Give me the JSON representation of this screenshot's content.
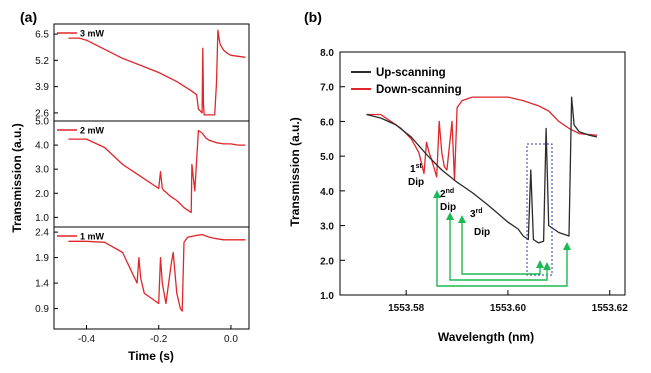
{
  "colors": {
    "red": "#e0262b",
    "black": "#2b2b2b",
    "green": "#1db954",
    "blue": "#2f3aa8"
  },
  "chart_data": [
    {
      "panel_label": "(a)",
      "type": "line",
      "xlabel": "Time (s)",
      "ylabel": "Transmission (a.u.)",
      "x_ticks": [
        "-0.4",
        "-0.2",
        "0.0"
      ],
      "xlim": [
        -0.49,
        0.05
      ],
      "subplots": [
        {
          "label": "3 mW",
          "ylim": [
            2.2,
            7.0
          ],
          "y_ticks": [
            "6.5",
            "5.2",
            "3.9",
            "2.6"
          ],
          "x": [
            -0.45,
            -0.42,
            -0.4,
            -0.35,
            -0.3,
            -0.25,
            -0.2,
            -0.15,
            -0.11,
            -0.095,
            -0.09,
            -0.08,
            -0.08,
            -0.078,
            -0.076,
            -0.074,
            -0.07,
            -0.06,
            -0.045,
            -0.04,
            -0.036,
            -0.034,
            -0.03,
            -0.02,
            -0.01,
            0.0,
            0.02,
            0.04
          ],
          "values": [
            6.3,
            6.3,
            6.2,
            5.75,
            5.3,
            4.95,
            4.6,
            4.15,
            3.7,
            3.5,
            2.8,
            2.6,
            2.6,
            5.8,
            3.0,
            2.5,
            2.5,
            2.5,
            2.5,
            4.1,
            6.7,
            6.4,
            6.0,
            5.7,
            5.55,
            5.45,
            5.4,
            5.35
          ]
        },
        {
          "label": "2 mW",
          "ylim": [
            0.6,
            5.0
          ],
          "y_ticks": [
            "5.0",
            "4.0",
            "3.0",
            "2.0",
            "1.0"
          ],
          "x": [
            -0.45,
            -0.4,
            -0.35,
            -0.3,
            -0.25,
            -0.2,
            -0.195,
            -0.19,
            -0.185,
            -0.18,
            -0.17,
            -0.15,
            -0.13,
            -0.12,
            -0.11,
            -0.108,
            -0.1,
            -0.09,
            -0.08,
            -0.07,
            -0.06,
            -0.04,
            -0.02,
            0.0,
            0.02,
            0.04
          ],
          "values": [
            4.25,
            4.25,
            3.9,
            3.2,
            2.7,
            2.2,
            2.9,
            2.2,
            2.1,
            2.05,
            1.9,
            1.7,
            1.4,
            1.3,
            1.2,
            3.2,
            2.1,
            4.6,
            4.5,
            4.3,
            4.2,
            4.1,
            4.05,
            4.05,
            4.0,
            4.0
          ]
        },
        {
          "label": "1 mW",
          "ylim": [
            0.5,
            2.5
          ],
          "y_ticks": [
            "2.4",
            "1.9",
            "1.4",
            "0.9"
          ],
          "x": [
            -0.45,
            -0.4,
            -0.35,
            -0.3,
            -0.28,
            -0.26,
            -0.255,
            -0.25,
            -0.24,
            -0.22,
            -0.2,
            -0.195,
            -0.19,
            -0.18,
            -0.165,
            -0.16,
            -0.15,
            -0.14,
            -0.135,
            -0.13,
            -0.12,
            -0.1,
            -0.08,
            -0.06,
            -0.04,
            -0.02,
            0.0,
            0.04
          ],
          "values": [
            2.22,
            2.22,
            2.2,
            2.0,
            1.7,
            1.4,
            1.9,
            1.5,
            1.2,
            1.1,
            1.0,
            1.9,
            1.4,
            1.0,
            1.8,
            2.0,
            1.2,
            0.9,
            0.85,
            2.2,
            2.3,
            2.33,
            2.35,
            2.3,
            2.27,
            2.25,
            2.25,
            2.25
          ]
        }
      ]
    },
    {
      "panel_label": "(b)",
      "type": "line",
      "xlabel": "Wavelength (nm)",
      "ylabel": "Transmission (a.u.)",
      "xlim": [
        1553.567,
        1553.623
      ],
      "ylim": [
        1.0,
        8.0
      ],
      "x_ticks": [
        "1553.58",
        "1553.60",
        "1553.62"
      ],
      "y_ticks": [
        "1.0",
        "2.0",
        "3.0",
        "4.0",
        "5.0",
        "6.0",
        "7.0",
        "8.0"
      ],
      "series": [
        {
          "name": "Up-scanning",
          "x": [
            1553.5722,
            1553.575,
            1553.578,
            1553.581,
            1553.584,
            1553.587,
            1553.59,
            1553.593,
            1553.596,
            1553.598,
            1553.6,
            1553.602,
            1553.603,
            1553.604,
            1553.6045,
            1553.605,
            1553.606,
            1553.607,
            1553.6075,
            1553.608,
            1553.609,
            1553.61,
            1553.611,
            1553.612,
            1553.6125,
            1553.613,
            1553.614,
            1553.616,
            1553.6175
          ],
          "values": [
            6.2,
            6.1,
            5.9,
            5.55,
            5.05,
            4.6,
            4.25,
            3.95,
            3.6,
            3.35,
            3.1,
            2.9,
            2.7,
            2.6,
            4.6,
            2.6,
            2.5,
            2.55,
            5.8,
            3.0,
            2.9,
            2.8,
            2.75,
            2.7,
            6.7,
            5.9,
            5.7,
            5.6,
            5.55
          ]
        },
        {
          "name": "Down-scanning",
          "x": [
            1553.5722,
            1553.575,
            1553.577,
            1553.579,
            1553.581,
            1553.5825,
            1553.5835,
            1553.584,
            1553.5845,
            1553.585,
            1553.586,
            1553.5865,
            1553.587,
            1553.5875,
            1553.588,
            1553.589,
            1553.5895,
            1553.59,
            1553.591,
            1553.593,
            1553.596,
            1553.6,
            1553.603,
            1553.605,
            1553.606,
            1553.608,
            1553.61,
            1553.612,
            1553.614,
            1553.6175
          ],
          "values": [
            6.2,
            6.2,
            6.0,
            5.8,
            5.5,
            5.1,
            4.5,
            5.4,
            5.1,
            4.9,
            4.4,
            6.0,
            5.1,
            4.7,
            4.6,
            6.0,
            4.3,
            6.4,
            6.6,
            6.7,
            6.7,
            6.7,
            6.6,
            6.5,
            6.45,
            6.3,
            6.0,
            5.8,
            5.65,
            5.6
          ]
        }
      ],
      "annotations": [
        {
          "base": "1",
          "sup": "st",
          "word": "Dip"
        },
        {
          "base": "2",
          "sup": "nd",
          "word": "Dip"
        },
        {
          "base": "3",
          "sup": "rd",
          "word": "Dip"
        }
      ]
    }
  ]
}
